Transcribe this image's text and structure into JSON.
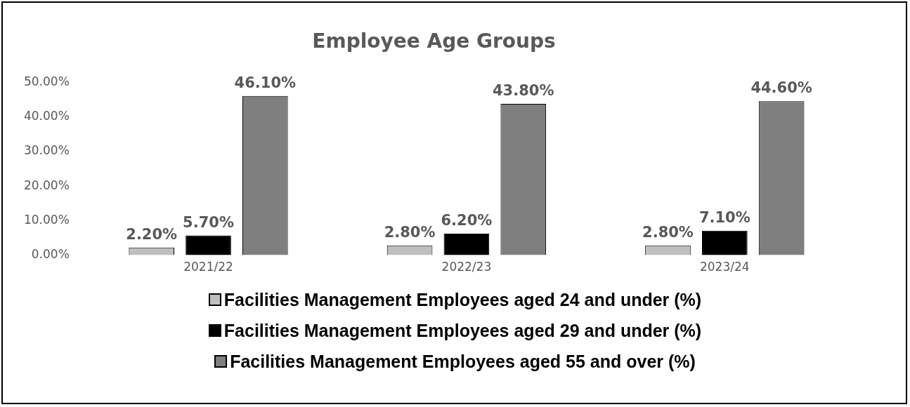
{
  "chart_data": {
    "type": "bar",
    "title": "Employee Age Groups",
    "categories": [
      "2021/22",
      "2022/23",
      "2023/24"
    ],
    "series": [
      {
        "name": "Facilities Management Employees aged 24 and under (%)",
        "color": "#bfbfbf",
        "values": [
          2.2,
          2.8,
          2.8
        ],
        "value_labels": [
          "2.20%",
          "2.80%",
          "2.80%"
        ]
      },
      {
        "name": "Facilities Management Employees aged 29 and under (%)",
        "color": "#000000",
        "values": [
          5.7,
          6.2,
          7.1
        ],
        "value_labels": [
          "5.70%",
          "6.20%",
          "7.10%"
        ]
      },
      {
        "name": "Facilities Management Employees aged 55 and over (%)",
        "color": "#7f7f7f",
        "values": [
          46.1,
          43.8,
          44.6
        ],
        "value_labels": [
          "46.10%",
          "43.80%",
          "44.60%"
        ]
      }
    ],
    "ylim": [
      0,
      50
    ],
    "yticks": [
      {
        "value": 0,
        "label": "0.00%"
      },
      {
        "value": 10,
        "label": "10.00%"
      },
      {
        "value": 20,
        "label": "20.00%"
      },
      {
        "value": 30,
        "label": "30.00%"
      },
      {
        "value": 40,
        "label": "40.00%"
      },
      {
        "value": 50,
        "label": "50.00%"
      }
    ],
    "grid": false,
    "legend": "bottom"
  }
}
